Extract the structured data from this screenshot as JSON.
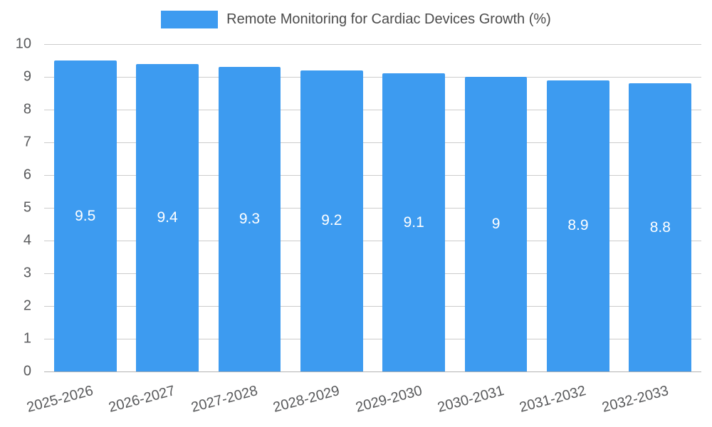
{
  "legend": {
    "label": "Remote Monitoring for Cardiac Devices Growth (%)"
  },
  "chart_data": {
    "type": "bar",
    "title": "Remote Monitoring for Cardiac Devices Growth (%)",
    "categories": [
      "2025-2026",
      "2026-2027",
      "2027-2028",
      "2028-2029",
      "2029-2030",
      "2030-2031",
      "2031-2032",
      "2032-2033"
    ],
    "values": [
      9.5,
      9.4,
      9.3,
      9.2,
      9.1,
      9,
      8.9,
      8.8
    ],
    "xlabel": "",
    "ylabel": "",
    "ylim": [
      0,
      10
    ],
    "yticks": [
      0,
      1,
      2,
      3,
      4,
      5,
      6,
      7,
      8,
      9,
      10
    ],
    "grid": true,
    "legend_position": "top",
    "bar_color": "#3d9bf0",
    "bar_label_color": "#ffffff",
    "gridline_color": "#cccccc",
    "axis_text_color": "#58595b"
  }
}
